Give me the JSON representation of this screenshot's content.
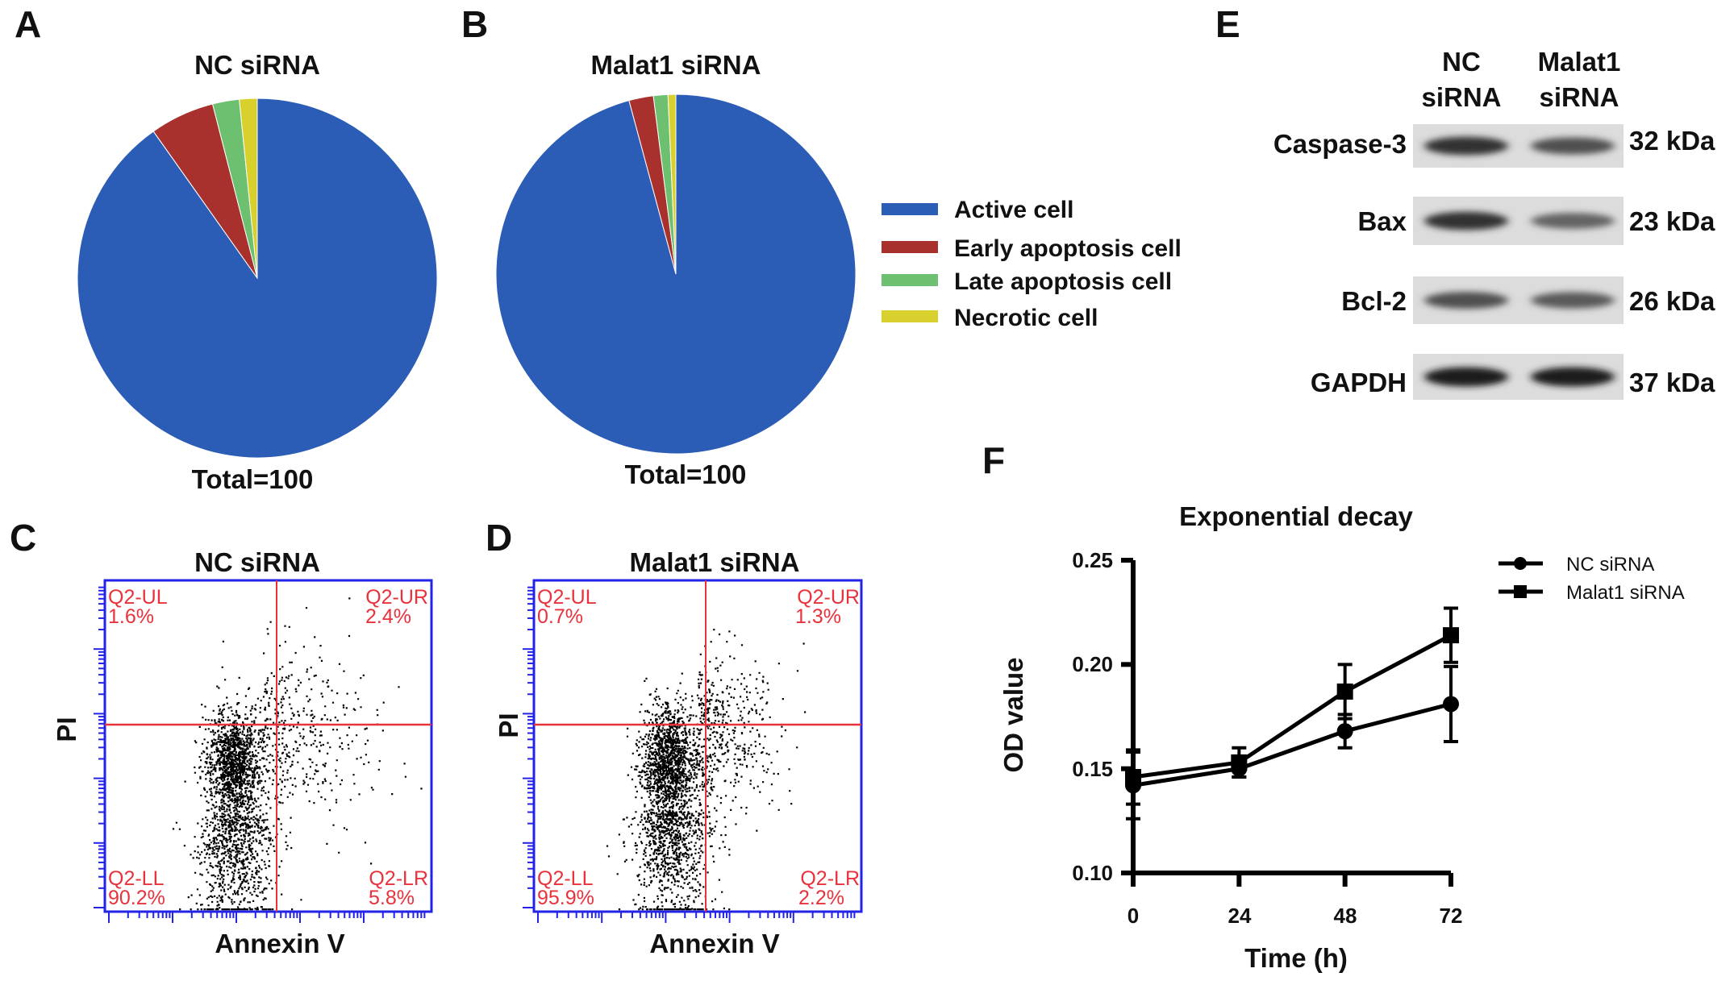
{
  "panels": {
    "a": "A",
    "b": "B",
    "c": "C",
    "d": "D",
    "e": "E",
    "f": "F"
  },
  "colors": {
    "active": "#2b5cb6",
    "early": "#a8302d",
    "late": "#6cc070",
    "necrotic": "#d8d02c",
    "flow_axis": "#2323e8",
    "flow_gate": "#e8323c"
  },
  "pies": [
    {
      "title": "NC siRNA",
      "total_label": "Total=100",
      "values": {
        "active": 90.2,
        "early": 5.8,
        "late": 2.4,
        "necrotic": 1.6
      }
    },
    {
      "title": "Malat1 siRNA",
      "total_label": "Total=100",
      "values": {
        "active": 95.9,
        "early": 2.2,
        "late": 1.3,
        "necrotic": 0.7
      }
    }
  ],
  "pie_legend": [
    {
      "key": "active",
      "label": "Active cell"
    },
    {
      "key": "early",
      "label": "Early apoptosis cell"
    },
    {
      "key": "late",
      "label": "Late apoptosis cell"
    },
    {
      "key": "necrotic",
      "label": "Necrotic cell"
    }
  ],
  "flow": [
    {
      "title": "NC siRNA",
      "xlabel": "Annexin V",
      "ylabel": "PI",
      "ul": "Q2-UL",
      "ul_pct": "1.6%",
      "ur": "Q2-UR",
      "ur_pct": "2.4%",
      "ll": "Q2-LL",
      "ll_pct": "90.2%",
      "lr": "Q2-LR",
      "lr_pct": "5.8%"
    },
    {
      "title": "Malat1 siRNA",
      "xlabel": "Annexin V",
      "ylabel": "PI",
      "ul": "Q2-UL",
      "ul_pct": "0.7%",
      "ur": "Q2-UR",
      "ur_pct": "1.3%",
      "ll": "Q2-LL",
      "ll_pct": "95.9%",
      "lr": "Q2-LR",
      "lr_pct": "2.2%"
    }
  ],
  "western": {
    "columns": [
      {
        "line1": "NC",
        "line2": "siRNA"
      },
      {
        "line1": "Malat1",
        "line2": "siRNA"
      }
    ],
    "rows": [
      {
        "protein": "Caspase-3",
        "size": "32 kDa",
        "intensity": [
          0.9,
          0.75
        ]
      },
      {
        "protein": "Bax",
        "size": "23 kDa",
        "intensity": [
          0.9,
          0.65
        ]
      },
      {
        "protein": "Bcl-2",
        "size": "26 kDa",
        "intensity": [
          0.75,
          0.7
        ]
      },
      {
        "protein": "GAPDH",
        "size": "37 kDa",
        "intensity": [
          1.0,
          1.0
        ]
      }
    ]
  },
  "chart_data": {
    "type": "line",
    "title": "Exponential decay",
    "xlabel": "Time (h)",
    "ylabel": "OD value",
    "x": [
      0,
      24,
      48,
      72
    ],
    "xticks": [
      "0",
      "24",
      "48",
      "72"
    ],
    "ylim": [
      0.1,
      0.25
    ],
    "yticks": [
      "0.10",
      "0.15",
      "0.20",
      "0.25"
    ],
    "legend_position": "top-right",
    "series": [
      {
        "name": "NC siRNA",
        "marker": "circle",
        "values": [
          0.142,
          0.15,
          0.168,
          0.181
        ],
        "errors": [
          0.016,
          0.004,
          0.008,
          0.018
        ]
      },
      {
        "name": "Malat1 siRNA",
        "marker": "square",
        "values": [
          0.146,
          0.153,
          0.187,
          0.214
        ],
        "errors": [
          0.013,
          0.007,
          0.013,
          0.013
        ]
      }
    ]
  }
}
